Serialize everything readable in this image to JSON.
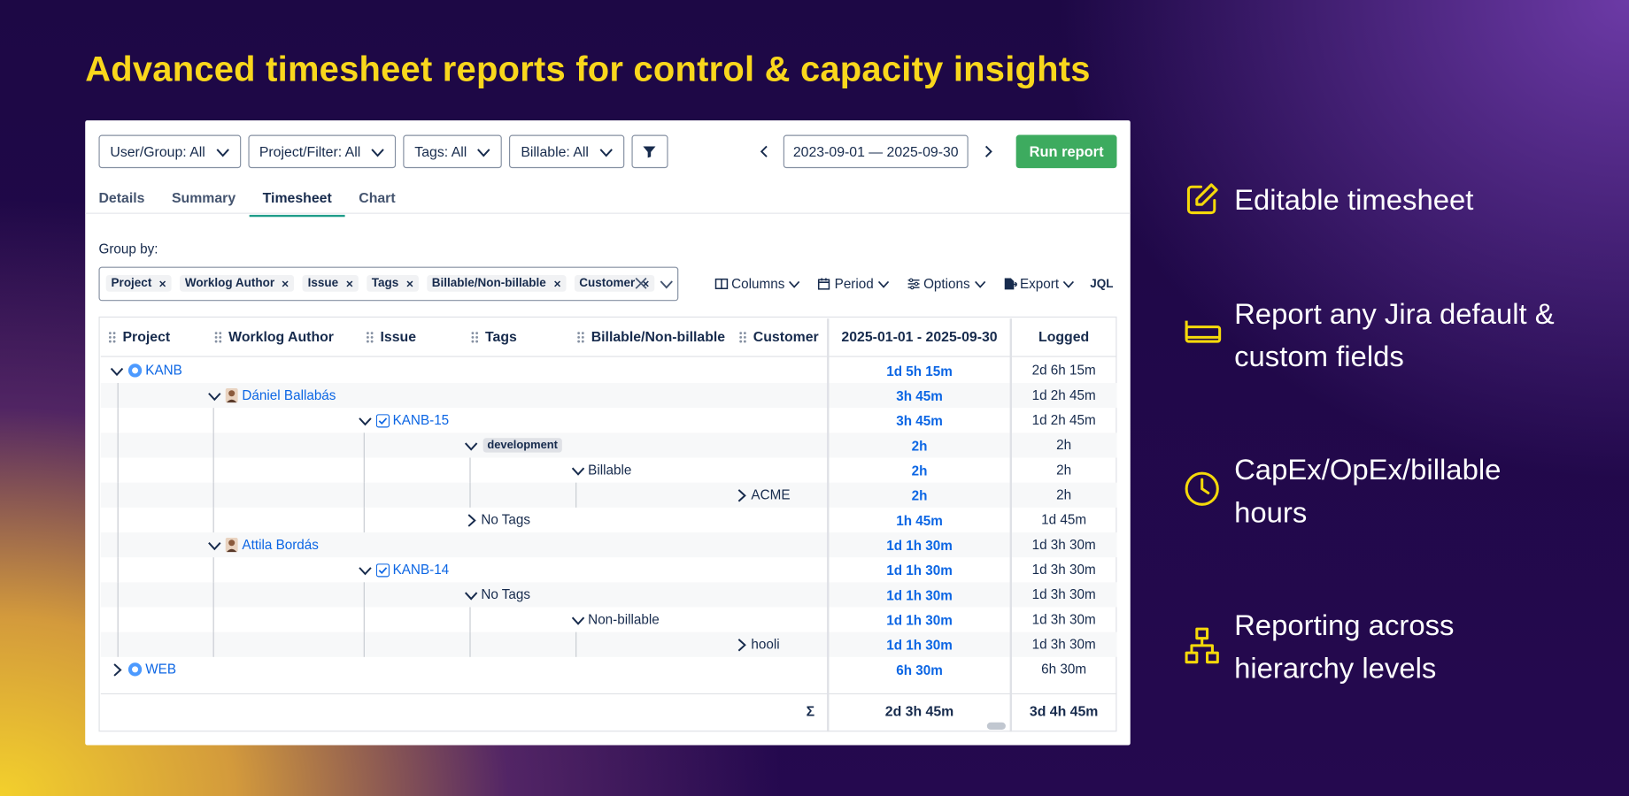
{
  "headline": "Advanced timesheet reports for control & capacity insights",
  "filters": [
    "User/Group: All",
    "Project/Filter: All",
    "Tags: All",
    "Billable: All"
  ],
  "date_range": "2023-09-01 — 2025-09-30",
  "run_button": "Run report",
  "tabs": [
    "Details",
    "Summary",
    "Timesheet",
    "Chart"
  ],
  "active_tab": 2,
  "group_by": {
    "label": "Group by:",
    "chips": [
      "Project",
      "Worklog Author",
      "Issue",
      "Tags",
      "Billable/Non-billable",
      "Customer"
    ]
  },
  "toolbar": [
    "Columns",
    "Period",
    "Options",
    "Export",
    "JQL"
  ],
  "table": {
    "columns": [
      "Project",
      "Worklog Author",
      "Issue",
      "Tags",
      "Billable/Non-billable",
      "Customer"
    ],
    "period_header": "2025-01-01 - 2025-09-30",
    "logged_header": "Logged",
    "rows": [
      {
        "level": 0,
        "label": "KANB",
        "expanded": true,
        "period": "1d 5h 15m",
        "logged": "2d 6h 15m"
      },
      {
        "level": 1,
        "label": "Dániel Ballabás",
        "expanded": true,
        "period": "3h 45m",
        "logged": "1d 2h 45m"
      },
      {
        "level": 2,
        "label": "KANB-15",
        "expanded": true,
        "period": "3h 45m",
        "logged": "1d 2h 45m"
      },
      {
        "level": 3,
        "label": "development",
        "chip": true,
        "expanded": true,
        "period": "2h",
        "logged": "2h"
      },
      {
        "level": 4,
        "label": "Billable",
        "expanded": true,
        "period": "2h",
        "logged": "2h"
      },
      {
        "level": 5,
        "label": "ACME",
        "expanded": false,
        "period": "2h",
        "logged": "2h"
      },
      {
        "level": 3,
        "label": "No Tags",
        "expanded": false,
        "period": "1h 45m",
        "logged": "1d 45m"
      },
      {
        "level": 1,
        "label": "Attila Bordás",
        "expanded": true,
        "period": "1d 1h 30m",
        "logged": "1d 3h 30m"
      },
      {
        "level": 2,
        "label": "KANB-14",
        "expanded": true,
        "period": "1d 1h 30m",
        "logged": "1d 3h 30m"
      },
      {
        "level": 3,
        "label": "No Tags",
        "expanded": true,
        "period": "1d 1h 30m",
        "logged": "1d 3h 30m"
      },
      {
        "level": 4,
        "label": "Non-billable",
        "expanded": true,
        "period": "1d 1h 30m",
        "logged": "1d 3h 30m"
      },
      {
        "level": 5,
        "label": "hooli",
        "expanded": false,
        "period": "1d 1h 30m",
        "logged": "1d 3h 30m"
      },
      {
        "level": 0,
        "label": "WEB",
        "expanded": false,
        "period": "6h 30m",
        "logged": "6h 30m"
      }
    ],
    "total": {
      "symbol": "Σ",
      "period": "2d 3h 45m",
      "logged": "3d 4h 45m"
    }
  },
  "features": [
    "Editable timesheet",
    "Report any Jira default & custom fields",
    "CapEx/OpEx/billable hours",
    "Reporting across hierarchy levels"
  ]
}
